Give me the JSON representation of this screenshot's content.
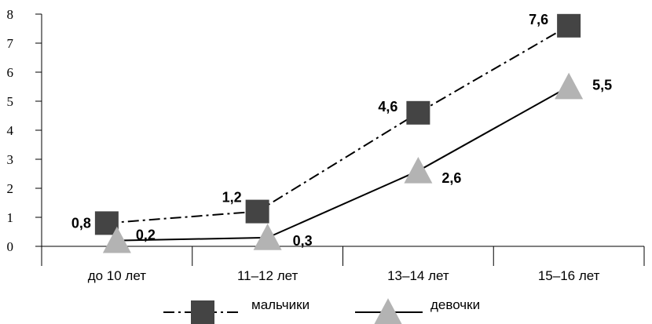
{
  "chart_data": {
    "type": "line",
    "categories": [
      "до 10 лет",
      "11–12 лет",
      "13–14 лет",
      "15–16 лет"
    ],
    "series": [
      {
        "name": "мальчики",
        "values": [
          0.8,
          1.2,
          4.6,
          7.6
        ],
        "labels": [
          "0,8",
          "1,2",
          "4,6",
          "7,6"
        ],
        "marker": "square",
        "line_style": "dash-dot",
        "color": "#444444"
      },
      {
        "name": "девочки",
        "values": [
          0.2,
          0.3,
          2.6,
          5.5
        ],
        "labels": [
          "0,2",
          "0,3",
          "2,6",
          "5,5"
        ],
        "marker": "triangle",
        "line_style": "solid",
        "color": "#b3b3b3"
      }
    ],
    "y_ticks": [
      "0",
      "1",
      "2",
      "3",
      "4",
      "5",
      "6",
      "7",
      "8"
    ],
    "ylim": [
      0,
      8
    ],
    "title": "",
    "xlabel": "",
    "ylabel": "",
    "grid": false,
    "legend_position": "bottom"
  }
}
